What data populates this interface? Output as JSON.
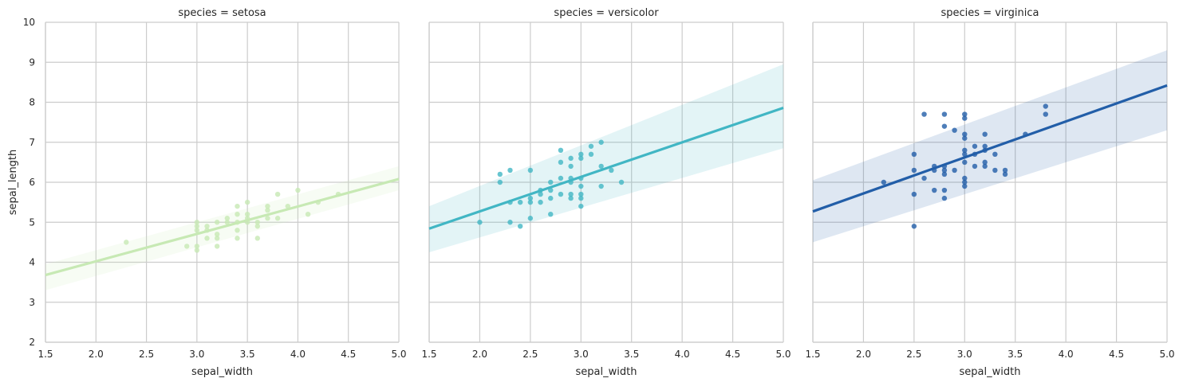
{
  "chart_data": [
    {
      "type": "scatter",
      "title": "species = setosa",
      "xlabel": "sepal_width",
      "ylabel": "sepal_length",
      "xlim": [
        1.5,
        5.0
      ],
      "ylim": [
        2,
        10
      ],
      "xticks": [
        "1.5",
        "2.0",
        "2.5",
        "3.0",
        "3.5",
        "4.0",
        "4.5",
        "5.0"
      ],
      "yticks": [
        "2",
        "3",
        "4",
        "5",
        "6",
        "7",
        "8",
        "9",
        "10"
      ],
      "grid": true,
      "color": "#c7e9b4",
      "band_color": "#c7e9b4",
      "points": [
        {
          "x": 2.3,
          "y": 4.5
        },
        {
          "x": 2.9,
          "y": 4.4
        },
        {
          "x": 3.0,
          "y": 4.3
        },
        {
          "x": 3.0,
          "y": 4.4
        },
        {
          "x": 3.0,
          "y": 4.8
        },
        {
          "x": 3.0,
          "y": 4.9
        },
        {
          "x": 3.0,
          "y": 5.0
        },
        {
          "x": 3.1,
          "y": 4.6
        },
        {
          "x": 3.1,
          "y": 4.8
        },
        {
          "x": 3.1,
          "y": 4.9
        },
        {
          "x": 3.2,
          "y": 4.4
        },
        {
          "x": 3.2,
          "y": 4.6
        },
        {
          "x": 3.2,
          "y": 4.7
        },
        {
          "x": 3.2,
          "y": 5.0
        },
        {
          "x": 3.3,
          "y": 5.0
        },
        {
          "x": 3.3,
          "y": 5.1
        },
        {
          "x": 3.4,
          "y": 4.6
        },
        {
          "x": 3.4,
          "y": 4.8
        },
        {
          "x": 3.4,
          "y": 5.0
        },
        {
          "x": 3.4,
          "y": 5.2
        },
        {
          "x": 3.4,
          "y": 5.4
        },
        {
          "x": 3.5,
          "y": 5.0
        },
        {
          "x": 3.5,
          "y": 5.1
        },
        {
          "x": 3.5,
          "y": 5.2
        },
        {
          "x": 3.5,
          "y": 5.5
        },
        {
          "x": 3.6,
          "y": 4.6
        },
        {
          "x": 3.6,
          "y": 4.9
        },
        {
          "x": 3.6,
          "y": 5.0
        },
        {
          "x": 3.7,
          "y": 5.1
        },
        {
          "x": 3.7,
          "y": 5.3
        },
        {
          "x": 3.7,
          "y": 5.4
        },
        {
          "x": 3.8,
          "y": 5.1
        },
        {
          "x": 3.8,
          "y": 5.7
        },
        {
          "x": 3.9,
          "y": 5.4
        },
        {
          "x": 4.0,
          "y": 5.8
        },
        {
          "x": 4.1,
          "y": 5.2
        },
        {
          "x": 4.2,
          "y": 5.5
        },
        {
          "x": 4.4,
          "y": 5.7
        }
      ],
      "regression": {
        "x": [
          1.5,
          5.0
        ],
        "y": [
          3.68,
          6.08
        ]
      },
      "ci_band": {
        "x": [
          1.5,
          5.0
        ],
        "lower": [
          3.3,
          5.8
        ],
        "upper": [
          3.95,
          6.4
        ]
      }
    },
    {
      "type": "scatter",
      "title": "species = versicolor",
      "xlabel": "sepal_width",
      "ylabel": "",
      "xlim": [
        1.5,
        5.0
      ],
      "ylim": [
        2,
        10
      ],
      "xticks": [
        "1.5",
        "2.0",
        "2.5",
        "3.0",
        "3.5",
        "4.0",
        "4.5",
        "5.0"
      ],
      "yticks": [],
      "grid": true,
      "color": "#41b6c4",
      "band_color": "#41b6c4",
      "points": [
        {
          "x": 2.0,
          "y": 5.0
        },
        {
          "x": 2.2,
          "y": 6.0
        },
        {
          "x": 2.2,
          "y": 6.2
        },
        {
          "x": 2.3,
          "y": 5.0
        },
        {
          "x": 2.3,
          "y": 5.5
        },
        {
          "x": 2.3,
          "y": 6.3
        },
        {
          "x": 2.4,
          "y": 4.9
        },
        {
          "x": 2.4,
          "y": 5.5
        },
        {
          "x": 2.5,
          "y": 5.1
        },
        {
          "x": 2.5,
          "y": 5.5
        },
        {
          "x": 2.5,
          "y": 5.6
        },
        {
          "x": 2.5,
          "y": 6.3
        },
        {
          "x": 2.6,
          "y": 5.5
        },
        {
          "x": 2.6,
          "y": 5.7
        },
        {
          "x": 2.6,
          "y": 5.8
        },
        {
          "x": 2.7,
          "y": 5.2
        },
        {
          "x": 2.7,
          "y": 5.6
        },
        {
          "x": 2.7,
          "y": 5.8
        },
        {
          "x": 2.7,
          "y": 6.0
        },
        {
          "x": 2.8,
          "y": 5.7
        },
        {
          "x": 2.8,
          "y": 6.1
        },
        {
          "x": 2.8,
          "y": 6.5
        },
        {
          "x": 2.8,
          "y": 6.8
        },
        {
          "x": 2.9,
          "y": 5.6
        },
        {
          "x": 2.9,
          "y": 5.7
        },
        {
          "x": 2.9,
          "y": 6.0
        },
        {
          "x": 2.9,
          "y": 6.1
        },
        {
          "x": 2.9,
          "y": 6.4
        },
        {
          "x": 2.9,
          "y": 6.6
        },
        {
          "x": 3.0,
          "y": 5.4
        },
        {
          "x": 3.0,
          "y": 5.6
        },
        {
          "x": 3.0,
          "y": 5.7
        },
        {
          "x": 3.0,
          "y": 5.9
        },
        {
          "x": 3.0,
          "y": 6.1
        },
        {
          "x": 3.0,
          "y": 6.6
        },
        {
          "x": 3.0,
          "y": 6.7
        },
        {
          "x": 3.1,
          "y": 6.7
        },
        {
          "x": 3.1,
          "y": 6.9
        },
        {
          "x": 3.2,
          "y": 5.9
        },
        {
          "x": 3.2,
          "y": 6.4
        },
        {
          "x": 3.2,
          "y": 7.0
        },
        {
          "x": 3.3,
          "y": 6.3
        },
        {
          "x": 3.4,
          "y": 6.0
        }
      ],
      "regression": {
        "x": [
          1.5,
          5.0
        ],
        "y": [
          4.84,
          7.86
        ]
      },
      "ci_band": {
        "x": [
          1.5,
          5.0
        ],
        "lower": [
          4.25,
          6.85
        ],
        "upper": [
          5.4,
          8.95
        ]
      }
    },
    {
      "type": "scatter",
      "title": "species = virginica",
      "xlabel": "sepal_width",
      "ylabel": "",
      "xlim": [
        1.5,
        5.0
      ],
      "ylim": [
        2,
        10
      ],
      "xticks": [
        "1.5",
        "2.0",
        "2.5",
        "3.0",
        "3.5",
        "4.0",
        "4.5",
        "5.0"
      ],
      "yticks": [],
      "grid": true,
      "color": "#225ea8",
      "band_color": "#225ea8",
      "points": [
        {
          "x": 2.2,
          "y": 6.0
        },
        {
          "x": 2.5,
          "y": 4.9
        },
        {
          "x": 2.5,
          "y": 5.7
        },
        {
          "x": 2.5,
          "y": 6.3
        },
        {
          "x": 2.5,
          "y": 6.7
        },
        {
          "x": 2.6,
          "y": 6.1
        },
        {
          "x": 2.6,
          "y": 7.7
        },
        {
          "x": 2.7,
          "y": 5.8
        },
        {
          "x": 2.7,
          "y": 6.3
        },
        {
          "x": 2.7,
          "y": 6.4
        },
        {
          "x": 2.8,
          "y": 5.6
        },
        {
          "x": 2.8,
          "y": 5.8
        },
        {
          "x": 2.8,
          "y": 6.2
        },
        {
          "x": 2.8,
          "y": 6.3
        },
        {
          "x": 2.8,
          "y": 6.4
        },
        {
          "x": 2.8,
          "y": 7.4
        },
        {
          "x": 2.8,
          "y": 7.7
        },
        {
          "x": 2.9,
          "y": 6.3
        },
        {
          "x": 2.9,
          "y": 7.3
        },
        {
          "x": 3.0,
          "y": 5.9
        },
        {
          "x": 3.0,
          "y": 6.0
        },
        {
          "x": 3.0,
          "y": 6.1
        },
        {
          "x": 3.0,
          "y": 6.5
        },
        {
          "x": 3.0,
          "y": 6.7
        },
        {
          "x": 3.0,
          "y": 6.8
        },
        {
          "x": 3.0,
          "y": 7.1
        },
        {
          "x": 3.0,
          "y": 7.2
        },
        {
          "x": 3.0,
          "y": 7.6
        },
        {
          "x": 3.0,
          "y": 7.7
        },
        {
          "x": 3.1,
          "y": 6.4
        },
        {
          "x": 3.1,
          "y": 6.7
        },
        {
          "x": 3.1,
          "y": 6.9
        },
        {
          "x": 3.2,
          "y": 6.4
        },
        {
          "x": 3.2,
          "y": 6.5
        },
        {
          "x": 3.2,
          "y": 6.8
        },
        {
          "x": 3.2,
          "y": 6.9
        },
        {
          "x": 3.2,
          "y": 7.2
        },
        {
          "x": 3.3,
          "y": 6.3
        },
        {
          "x": 3.3,
          "y": 6.7
        },
        {
          "x": 3.4,
          "y": 6.2
        },
        {
          "x": 3.4,
          "y": 6.3
        },
        {
          "x": 3.6,
          "y": 7.2
        },
        {
          "x": 3.8,
          "y": 7.7
        },
        {
          "x": 3.8,
          "y": 7.9
        }
      ],
      "regression": {
        "x": [
          1.5,
          5.0
        ],
        "y": [
          5.27,
          8.42
        ]
      },
      "ci_band": {
        "x": [
          1.5,
          5.0
        ],
        "lower": [
          4.5,
          7.3
        ],
        "upper": [
          6.05,
          9.3
        ]
      }
    }
  ]
}
